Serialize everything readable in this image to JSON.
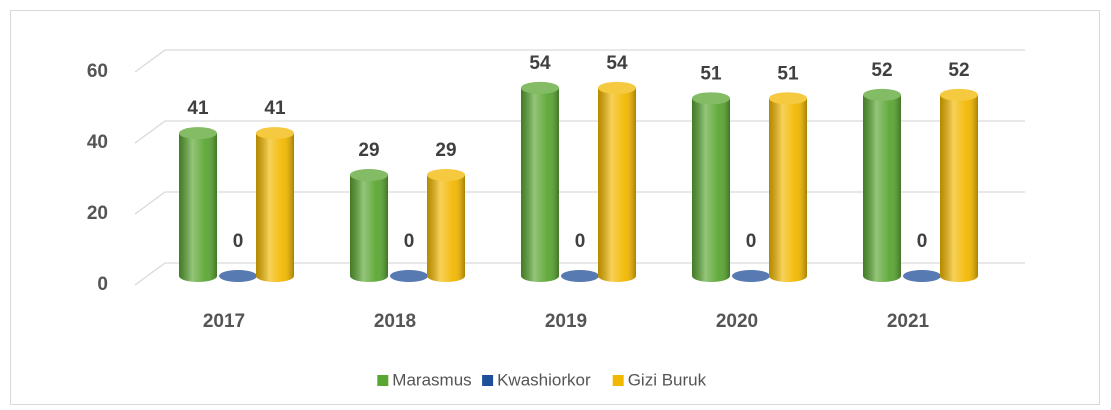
{
  "chart_data": {
    "type": "bar",
    "categories": [
      "2017",
      "2018",
      "2019",
      "2020",
      "2021"
    ],
    "series": [
      {
        "name": "Marasmus",
        "color": "#5aa632",
        "values": [
          41,
          29,
          54,
          51,
          52
        ]
      },
      {
        "name": "Kwashiorkor",
        "color": "#1f4e9a",
        "values": [
          0,
          0,
          0,
          0,
          0
        ]
      },
      {
        "name": "Gizi Buruk",
        "color": "#f2b800",
        "values": [
          41,
          29,
          54,
          51,
          52
        ]
      }
    ],
    "ylim": [
      0,
      60
    ],
    "yticks": [
      0,
      20,
      40,
      60
    ],
    "grid": true,
    "legend": "bottom"
  }
}
